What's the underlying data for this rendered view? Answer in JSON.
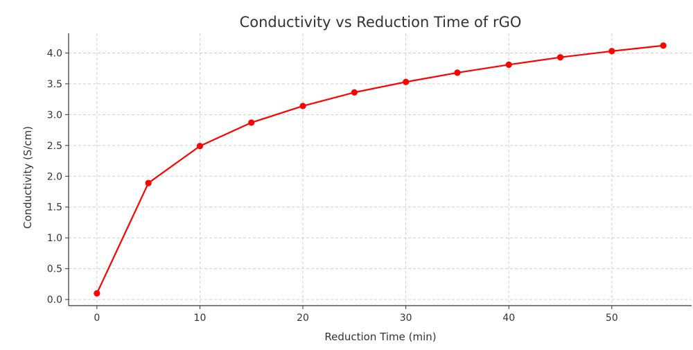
{
  "chart_data": {
    "type": "line",
    "title": "Conductivity vs Reduction Time of rGO",
    "xlabel": "Reduction Time (min)",
    "ylabel": "Conductivity (S/cm)",
    "x": [
      0,
      5,
      10,
      15,
      20,
      25,
      30,
      35,
      40,
      45,
      50,
      55
    ],
    "series": [
      {
        "values": [
          0.1,
          1.89,
          2.49,
          2.87,
          3.14,
          3.36,
          3.53,
          3.68,
          3.81,
          3.93,
          4.03,
          4.12
        ],
        "color": "#ff0000",
        "marker": "circle"
      }
    ],
    "xticks": [
      0,
      10,
      20,
      30,
      40,
      50
    ],
    "xtick_labels": [
      "0",
      "10",
      "20",
      "30",
      "40",
      "50"
    ],
    "yticks": [
      0.0,
      0.5,
      1.0,
      1.5,
      2.0,
      2.5,
      3.0,
      3.5,
      4.0
    ],
    "ytick_labels": [
      "0.0",
      "0.5",
      "1.0",
      "1.5",
      "2.0",
      "2.5",
      "3.0",
      "3.5",
      "4.0"
    ],
    "xlim": [
      -2.75,
      57.75
    ],
    "ylim": [
      -0.1,
      4.32
    ],
    "grid": true,
    "legend": "none"
  }
}
